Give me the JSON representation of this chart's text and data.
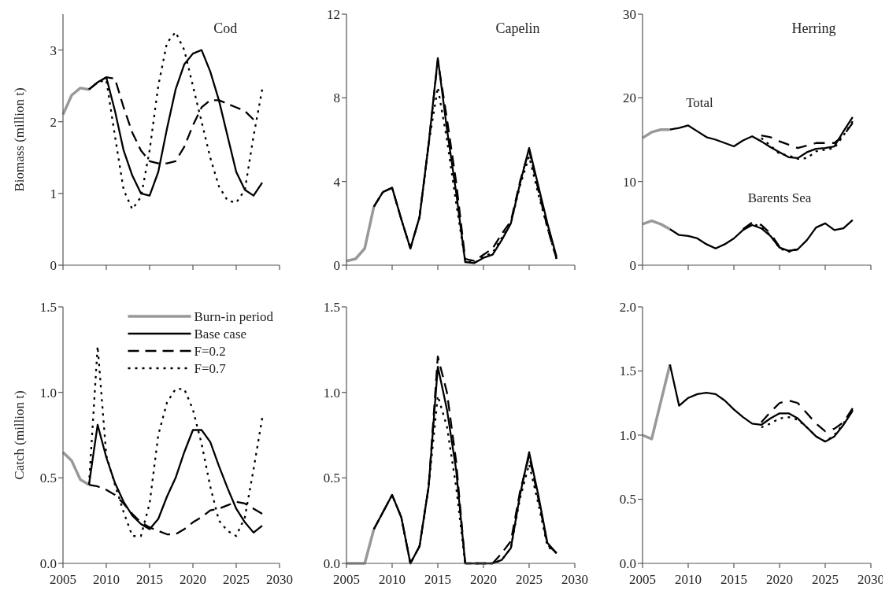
{
  "chart_data": [
    {
      "type": "line",
      "title": "Cod",
      "ylabel": "Biomass (million t)",
      "xlim": [
        2005,
        2030
      ],
      "xticks": [
        {
          "value": 2005,
          "label": null
        },
        {
          "value": 2010,
          "label": null
        },
        {
          "value": 2015,
          "label": null
        },
        {
          "value": 2020,
          "label": null
        },
        {
          "value": 2025,
          "label": null
        },
        {
          "value": 2030,
          "label": null
        }
      ],
      "ylim": [
        0,
        3.5
      ],
      "yticks": [
        0,
        1,
        2,
        3
      ],
      "tick_labels": "y",
      "series": [
        {
          "color": "#999999",
          "line_style": "solid",
          "x": [
            2005,
            2006,
            2007,
            2008
          ],
          "values": [
            2.1,
            2.37,
            2.47,
            2.45
          ]
        },
        {
          "color": "#000000",
          "line_style": "solid",
          "x": [
            2008,
            2009,
            2010,
            2011,
            2012,
            2013,
            2014,
            2015,
            2016,
            2017,
            2018,
            2019,
            2020,
            2021,
            2022,
            2023,
            2024,
            2025,
            2026,
            2027,
            2028
          ],
          "values": [
            2.45,
            2.55,
            2.62,
            2.15,
            1.6,
            1.25,
            1.0,
            0.97,
            1.3,
            1.9,
            2.45,
            2.8,
            2.95,
            3.0,
            2.7,
            2.3,
            1.8,
            1.3,
            1.05,
            0.97,
            1.15
          ]
        },
        {
          "color": "#000000",
          "line_style": "dashed",
          "x": [
            2008,
            2009,
            2010,
            2011,
            2012,
            2013,
            2014,
            2015,
            2016,
            2017,
            2018,
            2019,
            2020,
            2021,
            2022,
            2023,
            2024,
            2025,
            2026,
            2027
          ],
          "values": [
            2.45,
            2.55,
            2.62,
            2.6,
            2.2,
            1.85,
            1.6,
            1.45,
            1.42,
            1.42,
            1.45,
            1.65,
            1.95,
            2.2,
            2.3,
            2.3,
            2.25,
            2.2,
            2.15,
            2.03
          ]
        },
        {
          "color": "#000000",
          "line_style": "dotted",
          "x": [
            2008,
            2009,
            2010,
            2011,
            2012,
            2013,
            2014,
            2015,
            2016,
            2017,
            2018,
            2019,
            2020,
            2021,
            2022,
            2023,
            2024,
            2025,
            2026,
            2027,
            2028
          ],
          "values": [
            2.45,
            2.55,
            2.58,
            1.8,
            1.05,
            0.78,
            0.95,
            1.6,
            2.5,
            3.1,
            3.25,
            3.0,
            2.5,
            2.0,
            1.5,
            1.1,
            0.9,
            0.87,
            1.05,
            1.8,
            2.45
          ]
        }
      ]
    },
    {
      "type": "line",
      "title": "Capelin",
      "xlim": [
        2005,
        2030
      ],
      "xticks": [
        {
          "value": 2005,
          "label": null
        },
        {
          "value": 2010,
          "label": null
        },
        {
          "value": 2015,
          "label": null
        },
        {
          "value": 2020,
          "label": null
        },
        {
          "value": 2025,
          "label": null
        },
        {
          "value": 2030,
          "label": null
        }
      ],
      "ylim": [
        0,
        12
      ],
      "yticks": [
        0,
        4,
        8,
        12
      ],
      "tick_labels": "y",
      "series": [
        {
          "color": "#999999",
          "line_style": "solid",
          "x": [
            2005,
            2006,
            2007,
            2008
          ],
          "values": [
            0.2,
            0.3,
            0.8,
            2.8
          ]
        },
        {
          "color": "#000000",
          "line_style": "dashed",
          "x": [
            2008,
            2009,
            2010,
            2011,
            2012,
            2013,
            2014,
            2015,
            2016,
            2017,
            2018,
            2019,
            2020,
            2021,
            2022,
            2023,
            2024,
            2025,
            2026,
            2027,
            2028
          ],
          "values": [
            2.8,
            3.5,
            3.7,
            2.2,
            0.8,
            2.3,
            5.8,
            9.8,
            7.0,
            4.0,
            0.3,
            0.2,
            0.5,
            0.8,
            1.5,
            2.1,
            4.0,
            5.5,
            3.6,
            1.8,
            0.3
          ]
        },
        {
          "color": "#000000",
          "line_style": "dotted",
          "x": [
            2008,
            2009,
            2010,
            2011,
            2012,
            2013,
            2014,
            2015,
            2016,
            2017,
            2018,
            2019,
            2020,
            2021,
            2022,
            2023,
            2024,
            2025,
            2026,
            2027,
            2028
          ],
          "values": [
            2.8,
            3.5,
            3.7,
            2.2,
            0.8,
            2.3,
            5.8,
            8.5,
            6.0,
            3.0,
            0.2,
            0.1,
            0.4,
            0.6,
            1.3,
            2.0,
            3.8,
            5.2,
            3.4,
            1.8,
            0.3
          ]
        },
        {
          "color": "#000000",
          "line_style": "solid",
          "x": [
            2008,
            2009,
            2010,
            2011,
            2012,
            2013,
            2014,
            2015,
            2016,
            2017,
            2018,
            2019,
            2020,
            2021,
            2022,
            2023,
            2024,
            2025,
            2026,
            2027,
            2028
          ],
          "values": [
            2.8,
            3.5,
            3.7,
            2.2,
            0.8,
            2.3,
            5.8,
            9.9,
            6.5,
            3.5,
            0.15,
            0.1,
            0.35,
            0.5,
            1.2,
            2.0,
            3.9,
            5.6,
            3.8,
            2.0,
            0.4
          ]
        }
      ]
    },
    {
      "type": "line",
      "title": "Herring",
      "annotations": [
        "Total",
        "Barents Sea"
      ],
      "xlim": [
        2005,
        2030
      ],
      "xticks": [
        {
          "value": 2005,
          "label": null
        },
        {
          "value": 2010,
          "label": null
        },
        {
          "value": 2015,
          "label": null
        },
        {
          "value": 2020,
          "label": null
        },
        {
          "value": 2025,
          "label": null
        },
        {
          "value": 2030,
          "label": null
        }
      ],
      "ylim": [
        0,
        30
      ],
      "yticks": [
        0,
        10,
        20,
        30
      ],
      "tick_labels": "y",
      "series": [
        {
          "color": "#999999",
          "line_style": "solid",
          "x": [
            2005,
            2006,
            2007,
            2008
          ],
          "values": [
            15.2,
            15.9,
            16.2,
            16.2
          ]
        },
        {
          "color": "#000000",
          "line_style": "dashed",
          "x": [
            2018,
            2019,
            2020,
            2021,
            2022,
            2023,
            2024,
            2025,
            2026,
            2027,
            2028
          ],
          "values": [
            15.5,
            15.3,
            14.8,
            14.4,
            14.0,
            14.3,
            14.6,
            14.6,
            14.6,
            15.5,
            17.0
          ]
        },
        {
          "color": "#000000",
          "line_style": "dotted",
          "x": [
            2018,
            2019,
            2020,
            2021,
            2022,
            2023,
            2024,
            2025,
            2026,
            2027,
            2028
          ],
          "values": [
            15.2,
            14.3,
            13.3,
            13.1,
            12.7,
            12.8,
            13.6,
            13.8,
            14.0,
            15.5,
            17.2
          ]
        },
        {
          "color": "#000000",
          "line_style": "solid",
          "x": [
            2008,
            2009,
            2010,
            2011,
            2012,
            2013,
            2014,
            2015,
            2016,
            2017,
            2018,
            2019,
            2020,
            2021,
            2022,
            2023,
            2024,
            2025,
            2026,
            2027,
            2028
          ],
          "values": [
            16.2,
            16.4,
            16.7,
            16.0,
            15.3,
            15.0,
            14.6,
            14.2,
            14.9,
            15.4,
            14.8,
            14.1,
            13.5,
            12.9,
            12.8,
            13.5,
            13.9,
            14.0,
            14.2,
            16.0,
            17.7
          ]
        },
        {
          "color": "#999999",
          "line_style": "solid",
          "x": [
            2005,
            2006,
            2007,
            2008
          ],
          "values": [
            4.9,
            5.3,
            4.9,
            4.3
          ]
        },
        {
          "color": "#000000",
          "line_style": "dashed",
          "x": [
            2016,
            2017,
            2018,
            2019,
            2020,
            2021,
            2022
          ],
          "values": [
            4.3,
            5.1,
            4.8,
            3.8,
            2.2,
            1.7,
            1.9
          ]
        },
        {
          "color": "#000000",
          "line_style": "dotted",
          "x": [
            2016,
            2017,
            2018,
            2019,
            2020,
            2021,
            2022
          ],
          "values": [
            4.2,
            5.0,
            4.5,
            3.6,
            2.0,
            1.6,
            1.9
          ]
        },
        {
          "color": "#000000",
          "line_style": "solid",
          "x": [
            2008,
            2009,
            2010,
            2011,
            2012,
            2013,
            2014,
            2015,
            2016,
            2017,
            2018,
            2019,
            2020,
            2021,
            2022,
            2023,
            2024,
            2025,
            2026,
            2027,
            2028
          ],
          "values": [
            4.3,
            3.6,
            3.5,
            3.2,
            2.5,
            2.0,
            2.5,
            3.2,
            4.2,
            4.8,
            4.4,
            3.5,
            2.1,
            1.7,
            1.9,
            3.0,
            4.5,
            5.0,
            4.2,
            4.4,
            5.4
          ]
        }
      ]
    },
    {
      "type": "line",
      "ylabel": "Catch (million t)",
      "legend": "top right",
      "xlim": [
        2005,
        2030
      ],
      "xticks": [
        2005,
        2010,
        2015,
        2020,
        2025,
        2030
      ],
      "ylim": [
        0,
        1.5
      ],
      "yticks": [
        {
          "value": 0,
          "label": "0.0"
        },
        {
          "value": 0.5,
          "label": "0.5"
        },
        {
          "value": 1,
          "label": "1.0"
        },
        {
          "value": 1.5,
          "label": "1.5"
        }
      ],
      "series": [
        {
          "name": "Burn-in period",
          "color": "#999999",
          "line_style": "solid",
          "x": [
            2005,
            2006,
            2007,
            2008
          ],
          "values": [
            0.65,
            0.6,
            0.49,
            0.46
          ]
        },
        {
          "name": "Base case",
          "color": "#000000",
          "line_style": "solid",
          "x": [
            2008,
            2009,
            2010,
            2011,
            2012,
            2013,
            2014,
            2015,
            2016,
            2017,
            2018,
            2019,
            2020,
            2021,
            2022,
            2023,
            2024,
            2025,
            2026,
            2027,
            2028
          ],
          "values": [
            0.46,
            0.81,
            0.62,
            0.47,
            0.36,
            0.28,
            0.23,
            0.2,
            0.26,
            0.39,
            0.5,
            0.65,
            0.78,
            0.78,
            0.71,
            0.57,
            0.44,
            0.32,
            0.24,
            0.18,
            0.22
          ]
        },
        {
          "name": "F=0.2",
          "color": "#000000",
          "line_style": "dashed",
          "x": [
            2008,
            2009,
            2010,
            2011,
            2012,
            2013,
            2014,
            2015,
            2016,
            2017,
            2018,
            2019,
            2020,
            2021,
            2022,
            2023,
            2024,
            2025,
            2026,
            2027,
            2028
          ],
          "values": [
            0.46,
            0.45,
            0.43,
            0.4,
            0.35,
            0.29,
            0.24,
            0.21,
            0.19,
            0.17,
            0.17,
            0.2,
            0.24,
            0.27,
            0.31,
            0.32,
            0.34,
            0.36,
            0.35,
            0.32,
            0.29
          ]
        },
        {
          "name": "F=0.7",
          "color": "#000000",
          "line_style": "dotted",
          "x": [
            2008,
            2009,
            2010,
            2011,
            2012,
            2013,
            2014,
            2015,
            2016,
            2017,
            2018,
            2019,
            2020,
            2021,
            2022,
            2023,
            2024,
            2025,
            2026,
            2027,
            2028
          ],
          "values": [
            0.46,
            1.27,
            0.63,
            0.46,
            0.3,
            0.16,
            0.16,
            0.35,
            0.75,
            0.94,
            1.02,
            1.02,
            0.9,
            0.7,
            0.45,
            0.25,
            0.19,
            0.16,
            0.27,
            0.55,
            0.85
          ]
        }
      ]
    },
    {
      "type": "line",
      "xlim": [
        2005,
        2030
      ],
      "xticks": [
        2005,
        2010,
        2015,
        2020,
        2025,
        2030
      ],
      "ylim": [
        0,
        1.5
      ],
      "yticks": [
        {
          "value": 0,
          "label": "0.0"
        },
        {
          "value": 0.5,
          "label": "0.5"
        },
        {
          "value": 1,
          "label": "1.0"
        },
        {
          "value": 1.5,
          "label": "1.5"
        }
      ],
      "series": [
        {
          "color": "#999999",
          "line_style": "solid",
          "x": [
            2005,
            2006,
            2007,
            2008
          ],
          "values": [
            0,
            0,
            0,
            0.2
          ]
        },
        {
          "color": "#000000",
          "line_style": "dashed",
          "x": [
            2008,
            2009,
            2010,
            2011,
            2012,
            2013,
            2014,
            2015,
            2016,
            2017,
            2018,
            2019,
            2020,
            2021,
            2022,
            2023,
            2024,
            2025,
            2026,
            2027,
            2028
          ],
          "values": [
            0.2,
            0.3,
            0.4,
            0.27,
            0,
            0.1,
            0.45,
            1.21,
            1.0,
            0.6,
            0,
            0,
            0,
            0,
            0.06,
            0.13,
            0.42,
            0.63,
            0.38,
            0.11,
            0.06
          ]
        },
        {
          "color": "#000000",
          "line_style": "dotted",
          "x": [
            2008,
            2009,
            2010,
            2011,
            2012,
            2013,
            2014,
            2015,
            2016,
            2017,
            2018,
            2019,
            2020,
            2021,
            2022,
            2023,
            2024,
            2025,
            2026,
            2027,
            2028
          ],
          "values": [
            0.2,
            0.3,
            0.4,
            0.27,
            0,
            0.1,
            0.45,
            0.98,
            0.8,
            0.45,
            0,
            0,
            0,
            0,
            0.02,
            0.09,
            0.38,
            0.58,
            0.35,
            0.1,
            0.06
          ]
        },
        {
          "color": "#000000",
          "line_style": "solid",
          "x": [
            2008,
            2009,
            2010,
            2011,
            2012,
            2013,
            2014,
            2015,
            2016,
            2017,
            2018,
            2019,
            2020,
            2021,
            2022,
            2023,
            2024,
            2025,
            2026,
            2027,
            2028
          ],
          "values": [
            0.2,
            0.3,
            0.4,
            0.27,
            0,
            0.1,
            0.45,
            1.15,
            0.9,
            0.55,
            0,
            0,
            0,
            0,
            0.02,
            0.09,
            0.4,
            0.65,
            0.4,
            0.12,
            0.06
          ]
        }
      ]
    },
    {
      "type": "line",
      "xlim": [
        2005,
        2030
      ],
      "xticks": [
        2005,
        2010,
        2015,
        2020,
        2025,
        2030
      ],
      "ylim": [
        0,
        2
      ],
      "yticks": [
        {
          "value": 0,
          "label": "0.0"
        },
        {
          "value": 0.5,
          "label": "0.5"
        },
        {
          "value": 1,
          "label": "1.0"
        },
        {
          "value": 1.5,
          "label": "1.5"
        },
        {
          "value": 2,
          "label": "2.0"
        }
      ],
      "series": [
        {
          "color": "#999999",
          "line_style": "solid",
          "x": [
            2005,
            2006,
            2007,
            2008
          ],
          "values": [
            1.0,
            0.97,
            1.26,
            1.55
          ]
        },
        {
          "color": "#000000",
          "line_style": "dashed",
          "x": [
            2018,
            2019,
            2020,
            2021,
            2022,
            2023,
            2024,
            2025,
            2026,
            2027,
            2028
          ],
          "values": [
            1.1,
            1.18,
            1.25,
            1.27,
            1.25,
            1.17,
            1.09,
            1.03,
            1.05,
            1.1,
            1.21
          ]
        },
        {
          "color": "#000000",
          "line_style": "dotted",
          "x": [
            2018,
            2019,
            2020,
            2021,
            2022,
            2023,
            2024,
            2025,
            2026,
            2027,
            2028
          ],
          "values": [
            1.06,
            1.09,
            1.13,
            1.14,
            1.12,
            1.06,
            0.99,
            0.95,
            1.0,
            1.09,
            1.2
          ]
        },
        {
          "color": "#000000",
          "line_style": "solid",
          "x": [
            2008,
            2009,
            2010,
            2011,
            2012,
            2013,
            2014,
            2015,
            2016,
            2017,
            2018,
            2019,
            2020,
            2021,
            2022,
            2023,
            2024,
            2025,
            2026,
            2027,
            2028
          ],
          "values": [
            1.55,
            1.23,
            1.29,
            1.32,
            1.33,
            1.32,
            1.27,
            1.2,
            1.14,
            1.09,
            1.08,
            1.13,
            1.17,
            1.17,
            1.13,
            1.06,
            0.99,
            0.95,
            0.99,
            1.08,
            1.19
          ]
        }
      ]
    }
  ]
}
